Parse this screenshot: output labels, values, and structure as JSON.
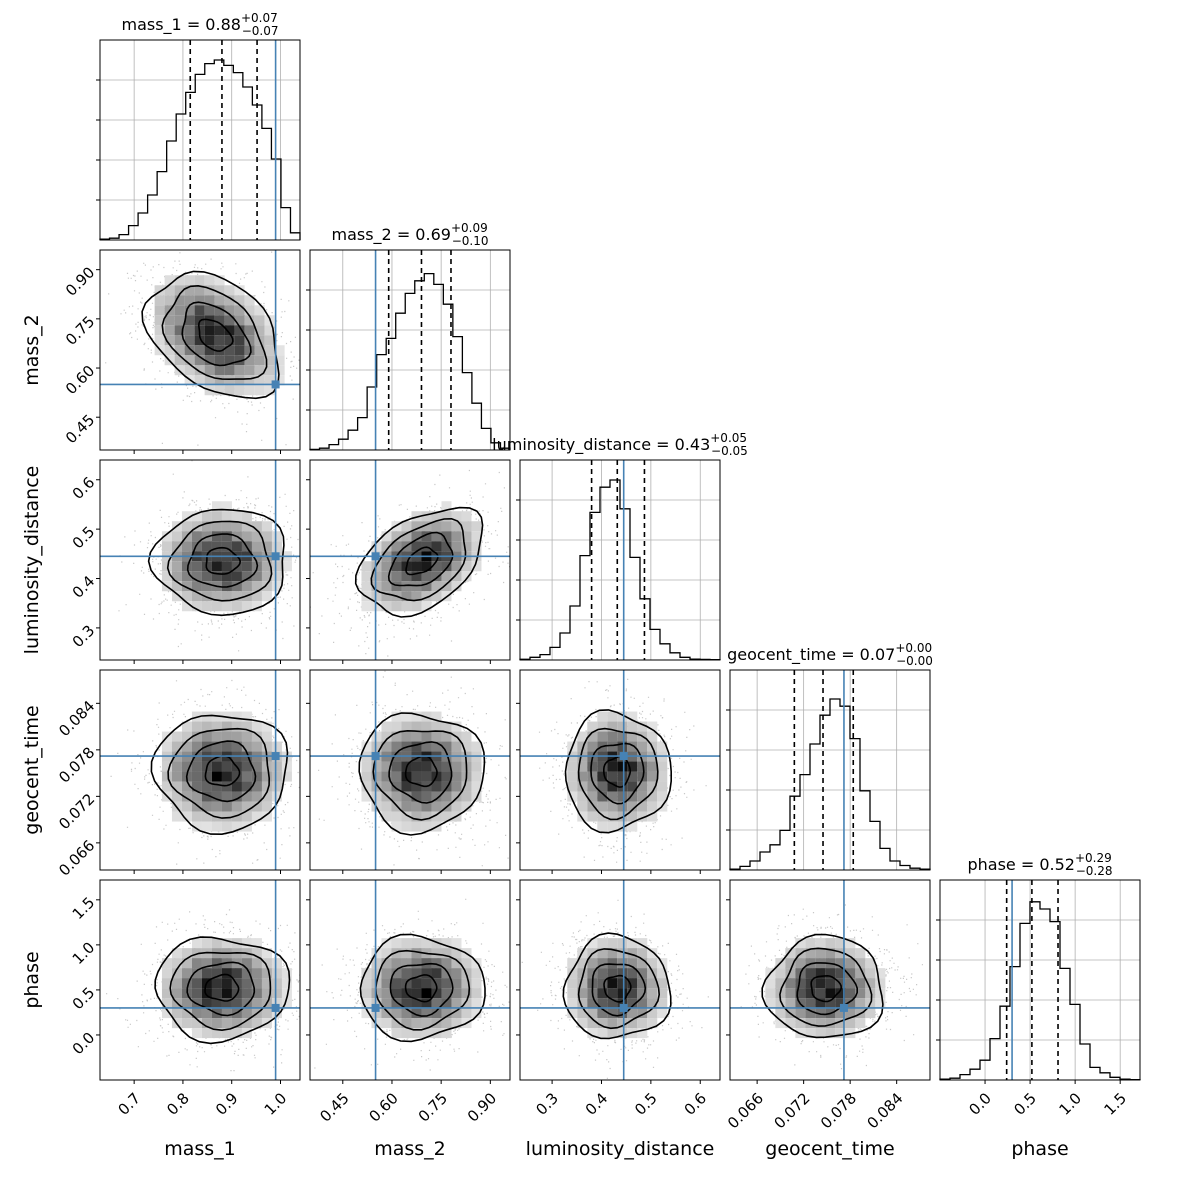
{
  "chart_data": {
    "type": "corner",
    "params": [
      {
        "name": "mass_1",
        "median": "0.88",
        "plus": "+0.07",
        "minus": "−0.07",
        "truth": 0.99,
        "quantiles": [
          0.815,
          0.88,
          0.952
        ],
        "range": [
          0.63,
          1.04
        ],
        "ticks": [
          0.7,
          0.8,
          0.9,
          1.0
        ],
        "tick_labels": [
          "0.7",
          "0.8",
          "0.9",
          "1.0"
        ],
        "hist": [
          0.005,
          0.01,
          0.03,
          0.08,
          0.15,
          0.25,
          0.38,
          0.55,
          0.7,
          0.82,
          0.92,
          0.98,
          1.0,
          0.97,
          0.93,
          0.85,
          0.75,
          0.62,
          0.45,
          0.18,
          0.04
        ]
      },
      {
        "name": "mass_2",
        "median": "0.69",
        "plus": "+0.09",
        "minus": "−0.10",
        "truth": 0.55,
        "quantiles": [
          0.59,
          0.69,
          0.78
        ],
        "range": [
          0.35,
          0.96
        ],
        "ticks": [
          0.45,
          0.6,
          0.75,
          0.9
        ],
        "tick_labels": [
          "0.45",
          "0.60",
          "0.75",
          "0.90"
        ],
        "hist": [
          0.003,
          0.01,
          0.03,
          0.06,
          0.11,
          0.18,
          0.35,
          0.53,
          0.62,
          0.76,
          0.87,
          0.94,
          0.98,
          0.92,
          0.81,
          0.63,
          0.43,
          0.26,
          0.12,
          0.04,
          0.01
        ]
      },
      {
        "name": "luminosity_distance",
        "median": "0.43",
        "plus": "+0.05",
        "minus": "−0.05",
        "truth": 0.445,
        "quantiles": [
          0.38,
          0.432,
          0.487
        ],
        "range": [
          0.235,
          0.64
        ],
        "ticks": [
          0.3,
          0.4,
          0.5,
          0.6
        ],
        "tick_labels": [
          "0.3",
          "0.4",
          "0.5",
          "0.6"
        ],
        "hist": [
          0.004,
          0.015,
          0.03,
          0.07,
          0.15,
          0.3,
          0.58,
          0.82,
          0.96,
          1.0,
          0.84,
          0.57,
          0.34,
          0.17,
          0.09,
          0.04,
          0.015,
          0.005,
          0.003,
          0.002
        ]
      },
      {
        "name": "geocent_time",
        "median": "0.07",
        "plus": "+0.00",
        "minus": "−0.00",
        "truth": 0.0772,
        "quantiles": [
          0.0708,
          0.0745,
          0.0784
        ],
        "range": [
          0.0625,
          0.0883
        ],
        "ticks": [
          0.066,
          0.072,
          0.078,
          0.084
        ],
        "tick_labels": [
          "0.066",
          "0.072",
          "0.078",
          "0.084"
        ],
        "hist": [
          0.005,
          0.02,
          0.05,
          0.1,
          0.14,
          0.22,
          0.41,
          0.53,
          0.7,
          0.86,
          0.95,
          0.91,
          0.73,
          0.44,
          0.27,
          0.12,
          0.05,
          0.025,
          0.01,
          0.005
        ]
      },
      {
        "name": "phase",
        "median": "0.52",
        "plus": "+0.29",
        "minus": "−0.28",
        "truth": 0.3,
        "quantiles": [
          0.24,
          0.52,
          0.81
        ],
        "range": [
          -0.5,
          1.72
        ],
        "ticks": [
          0.0,
          0.5,
          1.0,
          1.5
        ],
        "tick_labels": [
          "0.0",
          "0.5",
          "1.0",
          "1.5"
        ],
        "hist": [
          0.005,
          0.01,
          0.03,
          0.06,
          0.11,
          0.23,
          0.41,
          0.63,
          0.87,
          0.99,
          0.95,
          0.88,
          0.62,
          0.42,
          0.2,
          0.07,
          0.04,
          0.015,
          0.005,
          0.002
        ]
      }
    ],
    "correlations": [
      {
        "pair": [
          "mass_1",
          "mass_2"
        ],
        "center": [
          0.865,
          0.7
        ],
        "rho": -0.35
      },
      {
        "pair": [
          "mass_1",
          "luminosity_distance"
        ],
        "center": [
          0.88,
          0.435
        ],
        "rho": 0.0
      },
      {
        "pair": [
          "mass_2",
          "luminosity_distance"
        ],
        "center": [
          0.69,
          0.435
        ],
        "rho": 0.4
      },
      {
        "pair": [
          "mass_1",
          "geocent_time"
        ],
        "center": [
          0.88,
          0.0752
        ],
        "rho": 0.0
      },
      {
        "pair": [
          "mass_2",
          "geocent_time"
        ],
        "center": [
          0.69,
          0.0752
        ],
        "rho": 0.0
      },
      {
        "pair": [
          "luminosity_distance",
          "geocent_time"
        ],
        "center": [
          0.432,
          0.0752
        ],
        "rho": 0.0
      },
      {
        "pair": [
          "mass_1",
          "phase"
        ],
        "center": [
          0.88,
          0.52
        ],
        "rho": 0.0
      },
      {
        "pair": [
          "mass_2",
          "phase"
        ],
        "center": [
          0.69,
          0.52
        ],
        "rho": 0.0
      },
      {
        "pair": [
          "luminosity_distance",
          "phase"
        ],
        "center": [
          0.432,
          0.52
        ],
        "rho": 0.0
      },
      {
        "pair": [
          "geocent_time",
          "phase"
        ],
        "center": [
          0.0748,
          0.52
        ],
        "rho": 0.0
      }
    ],
    "contour_levels_sigma": [
      0.5,
      1.0,
      1.5,
      2.0
    ],
    "grid": true,
    "truth_color": "#4682b4",
    "hist_color": "#000000",
    "scatter_color": "#b0b0b0"
  }
}
